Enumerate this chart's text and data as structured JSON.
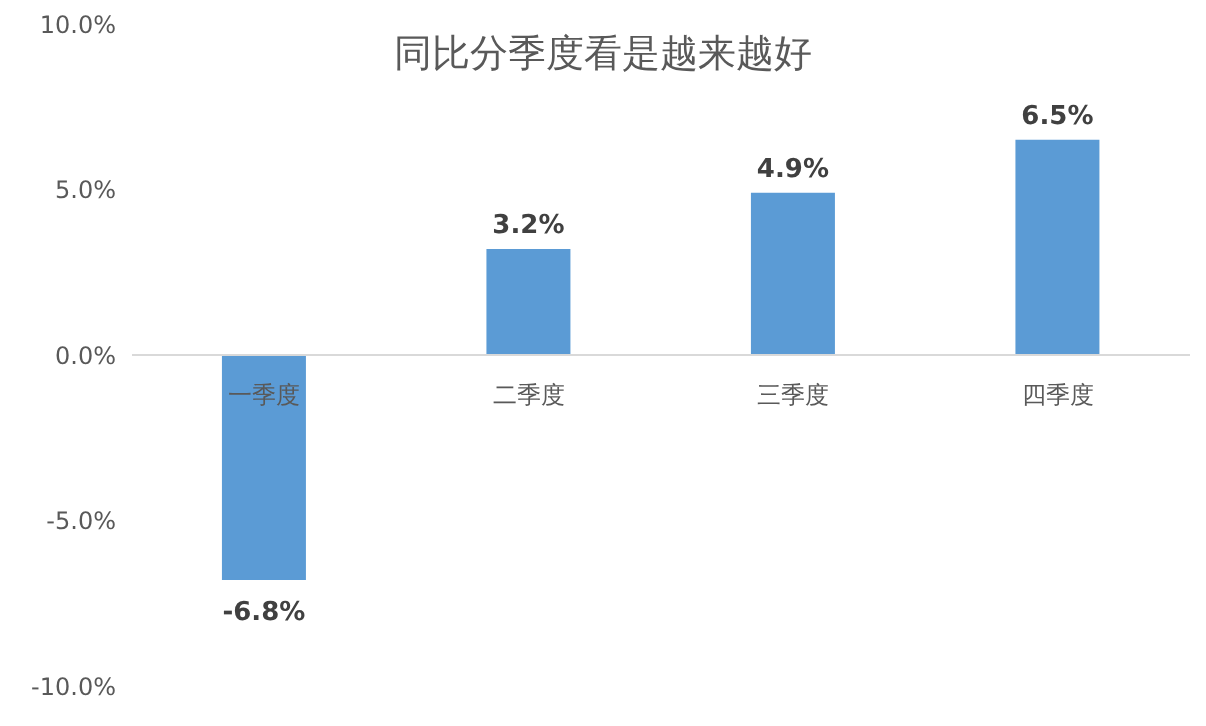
{
  "chart_data": {
    "type": "bar",
    "title": "同比分季度看是越来越好",
    "categories": [
      "一季度",
      "二季度",
      "三季度",
      "四季度"
    ],
    "values": [
      -6.8,
      3.2,
      4.9,
      6.5
    ],
    "color": "#5b9bd5",
    "value_labels": [
      "-6.8%",
      "3.2%",
      "4.9%",
      "6.5%"
    ],
    "ylim": [
      -10,
      10
    ],
    "yticks": [
      {
        "value": -10,
        "label": "-10.0%"
      },
      {
        "value": -5,
        "label": "-5.0%"
      },
      {
        "value": 0,
        "label": "0.0%"
      },
      {
        "value": 5,
        "label": "5.0%"
      },
      {
        "value": 10,
        "label": "10.0%"
      }
    ],
    "grid": false,
    "legend": false
  }
}
